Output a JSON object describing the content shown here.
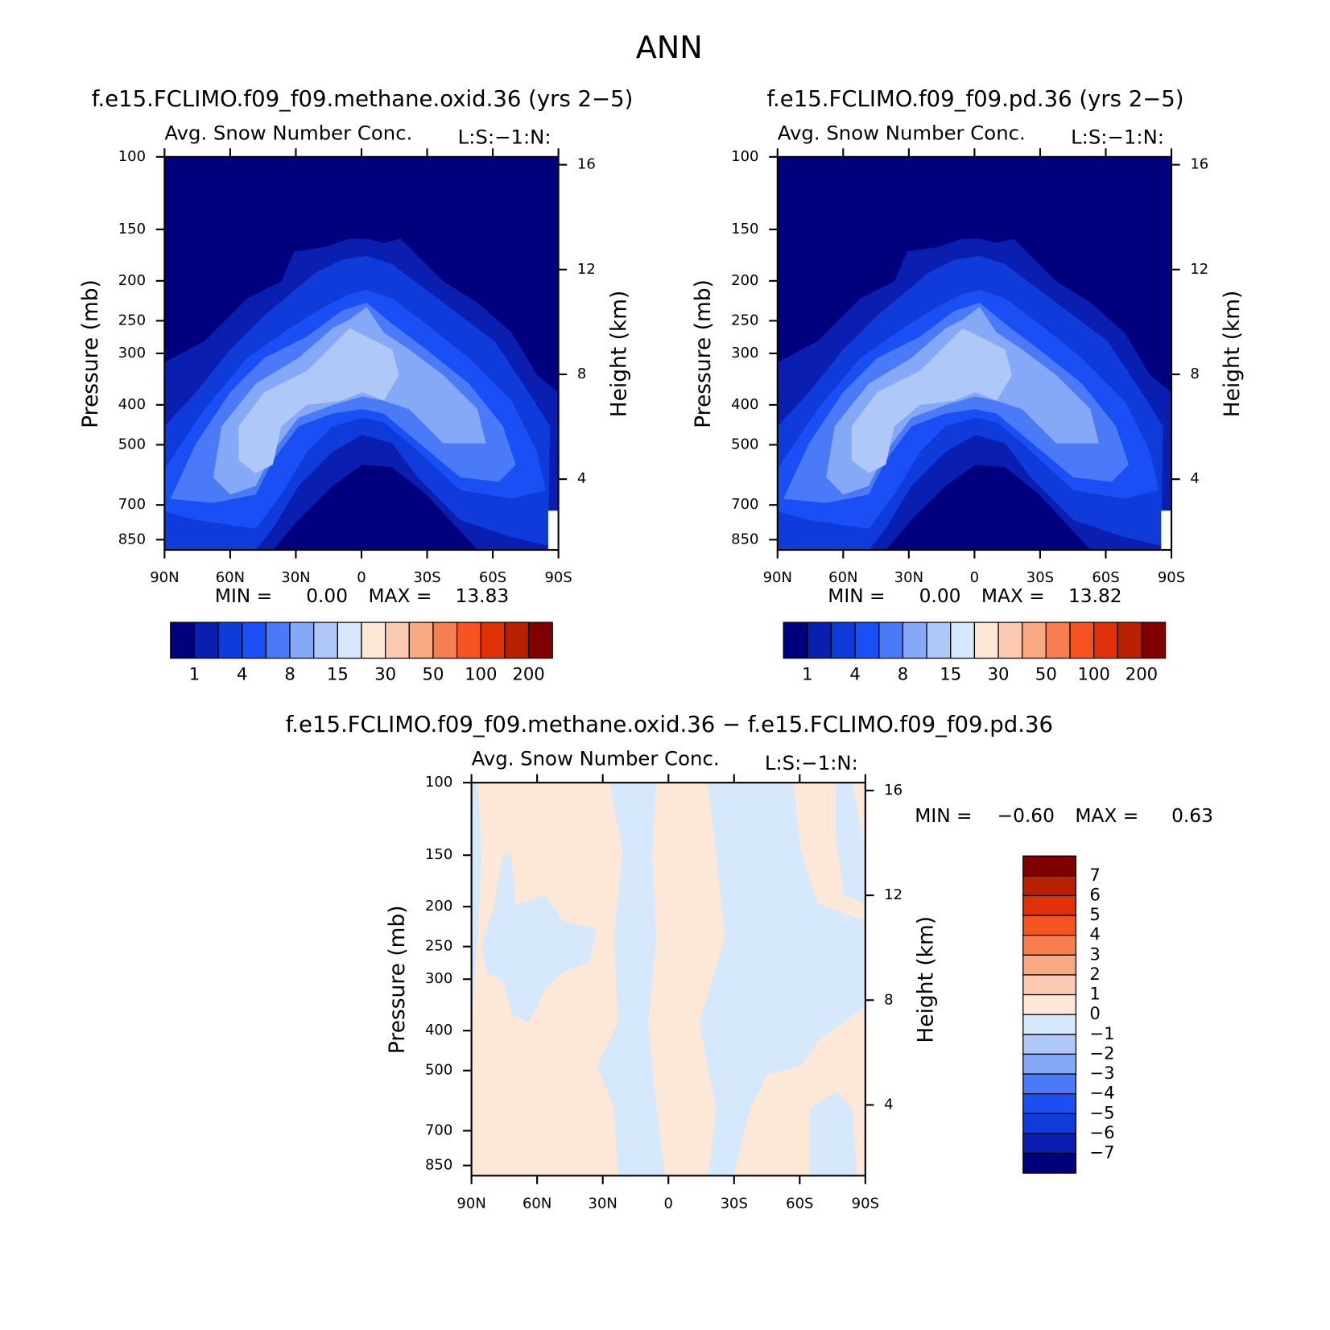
{
  "title": "ANN",
  "chart_data": [
    {
      "type": "contour",
      "title": "f.e15.FCLIMO.f09_f09.methane.oxid.36 (yrs 2−5)",
      "subtitle": "Avg. Snow Number Conc.",
      "units": "L:S:−1:N:",
      "ylabel": "Pressure (mb)",
      "y2label": "Height (km)",
      "yscale": "log",
      "xlim": [
        90,
        -90
      ],
      "xticks": [
        {
          "value": 90,
          "label": "90N"
        },
        {
          "value": 60,
          "label": "60N"
        },
        {
          "value": 30,
          "label": "30N"
        },
        0,
        {
          "value": -30,
          "label": "30S"
        },
        {
          "value": -60,
          "label": "60S"
        },
        {
          "value": -90,
          "label": "90S"
        }
      ],
      "ylim": [
        100,
        900
      ],
      "yticks": [
        100,
        150,
        200,
        250,
        300,
        400,
        500,
        700,
        850
      ],
      "y2lim": [
        1.3,
        16.3
      ],
      "y2ticks": [
        4,
        8,
        12,
        16
      ],
      "stats": [
        {
          "name": "MIN =",
          "value": 0,
          "label": "0.00"
        },
        {
          "name": "MAX =",
          "value": 13.83
        }
      ],
      "colorbar": {
        "orientation": "horizontal",
        "colors": [
          "#00007f",
          "#0a1fb0",
          "#0f3bdb",
          "#1a4ff5",
          "#4a7af7",
          "#85a8f7",
          "#b0c8f7",
          "#d6e8fb",
          "#fde7d6",
          "#fbcab0",
          "#f9a882",
          "#f77e4e",
          "#f55320",
          "#e03008",
          "#b82000",
          "#800000"
        ],
        "labels": [
          1,
          4,
          8,
          15,
          30,
          50,
          100,
          200
        ]
      }
    },
    {
      "type": "contour",
      "title": "f.e15.FCLIMO.f09_f09.pd.36 (yrs 2−5)",
      "subtitle": "Avg. Snow Number Conc.",
      "units": "L:S:−1:N:",
      "ylabel": "Pressure (mb)",
      "y2label": "Height (km)",
      "yscale": "log",
      "xlim": [
        90,
        -90
      ],
      "xticks": [
        {
          "value": 90,
          "label": "90N"
        },
        {
          "value": 60,
          "label": "60N"
        },
        {
          "value": 30,
          "label": "30N"
        },
        0,
        {
          "value": -30,
          "label": "30S"
        },
        {
          "value": -60,
          "label": "60S"
        },
        {
          "value": -90,
          "label": "90S"
        }
      ],
      "ylim": [
        100,
        900
      ],
      "yticks": [
        100,
        150,
        200,
        250,
        300,
        400,
        500,
        700,
        850
      ],
      "y2lim": [
        1.3,
        16.3
      ],
      "y2ticks": [
        4,
        8,
        12,
        16
      ],
      "stats": [
        {
          "name": "MIN =",
          "value": 0,
          "label": "0.00"
        },
        {
          "name": "MAX =",
          "value": 13.82
        }
      ],
      "colorbar": {
        "orientation": "horizontal",
        "colors": [
          "#00007f",
          "#0a1fb0",
          "#0f3bdb",
          "#1a4ff5",
          "#4a7af7",
          "#85a8f7",
          "#b0c8f7",
          "#d6e8fb",
          "#fde7d6",
          "#fbcab0",
          "#f9a882",
          "#f77e4e",
          "#f55320",
          "#e03008",
          "#b82000",
          "#800000"
        ],
        "labels": [
          1,
          4,
          8,
          15,
          30,
          50,
          100,
          200
        ]
      }
    },
    {
      "type": "contour",
      "title": "f.e15.FCLIMO.f09_f09.methane.oxid.36 − f.e15.FCLIMO.f09_f09.pd.36",
      "subtitle": "Avg. Snow Number Conc.",
      "units": "L:S:−1:N:",
      "ylabel": "Pressure (mb)",
      "y2label": "Height (km)",
      "yscale": "log",
      "xlim": [
        90,
        -90
      ],
      "xticks": [
        {
          "value": 90,
          "label": "90N"
        },
        {
          "value": 60,
          "label": "60N"
        },
        {
          "value": 30,
          "label": "30N"
        },
        0,
        {
          "value": -30,
          "label": "30S"
        },
        {
          "value": -60,
          "label": "60S"
        },
        {
          "value": -90,
          "label": "90S"
        }
      ],
      "ylim": [
        100,
        900
      ],
      "yticks": [
        100,
        150,
        200,
        250,
        300,
        400,
        500,
        700,
        850
      ],
      "y2lim": [
        1.3,
        16.3
      ],
      "y2ticks": [
        4,
        8,
        12,
        16
      ],
      "stats": [
        {
          "name": "MIN =",
          "value": -0.6,
          "label": "−0.60"
        },
        {
          "name": "MAX =",
          "value": 0.63
        }
      ],
      "colorbar": {
        "orientation": "vertical",
        "colors": [
          "#800000",
          "#b82000",
          "#e03008",
          "#f55320",
          "#f77e4e",
          "#f9a882",
          "#fbcab0",
          "#fde7d6",
          "#d6e8fb",
          "#b0c8f7",
          "#85a8f7",
          "#4a7af7",
          "#1a4ff5",
          "#0f3bdb",
          "#0a1fb0",
          "#00007f"
        ],
        "labels": [
          7,
          6,
          5,
          4,
          3,
          2,
          1,
          0,
          {
            "value": -1,
            "label": "−1"
          },
          {
            "value": -2,
            "label": "−2"
          },
          {
            "value": -3,
            "label": "−3"
          },
          {
            "value": -4,
            "label": "−4"
          },
          {
            "value": -5,
            "label": "−5"
          },
          {
            "value": -6,
            "label": "−6"
          },
          {
            "value": -7,
            "label": "−7"
          }
        ]
      }
    }
  ]
}
